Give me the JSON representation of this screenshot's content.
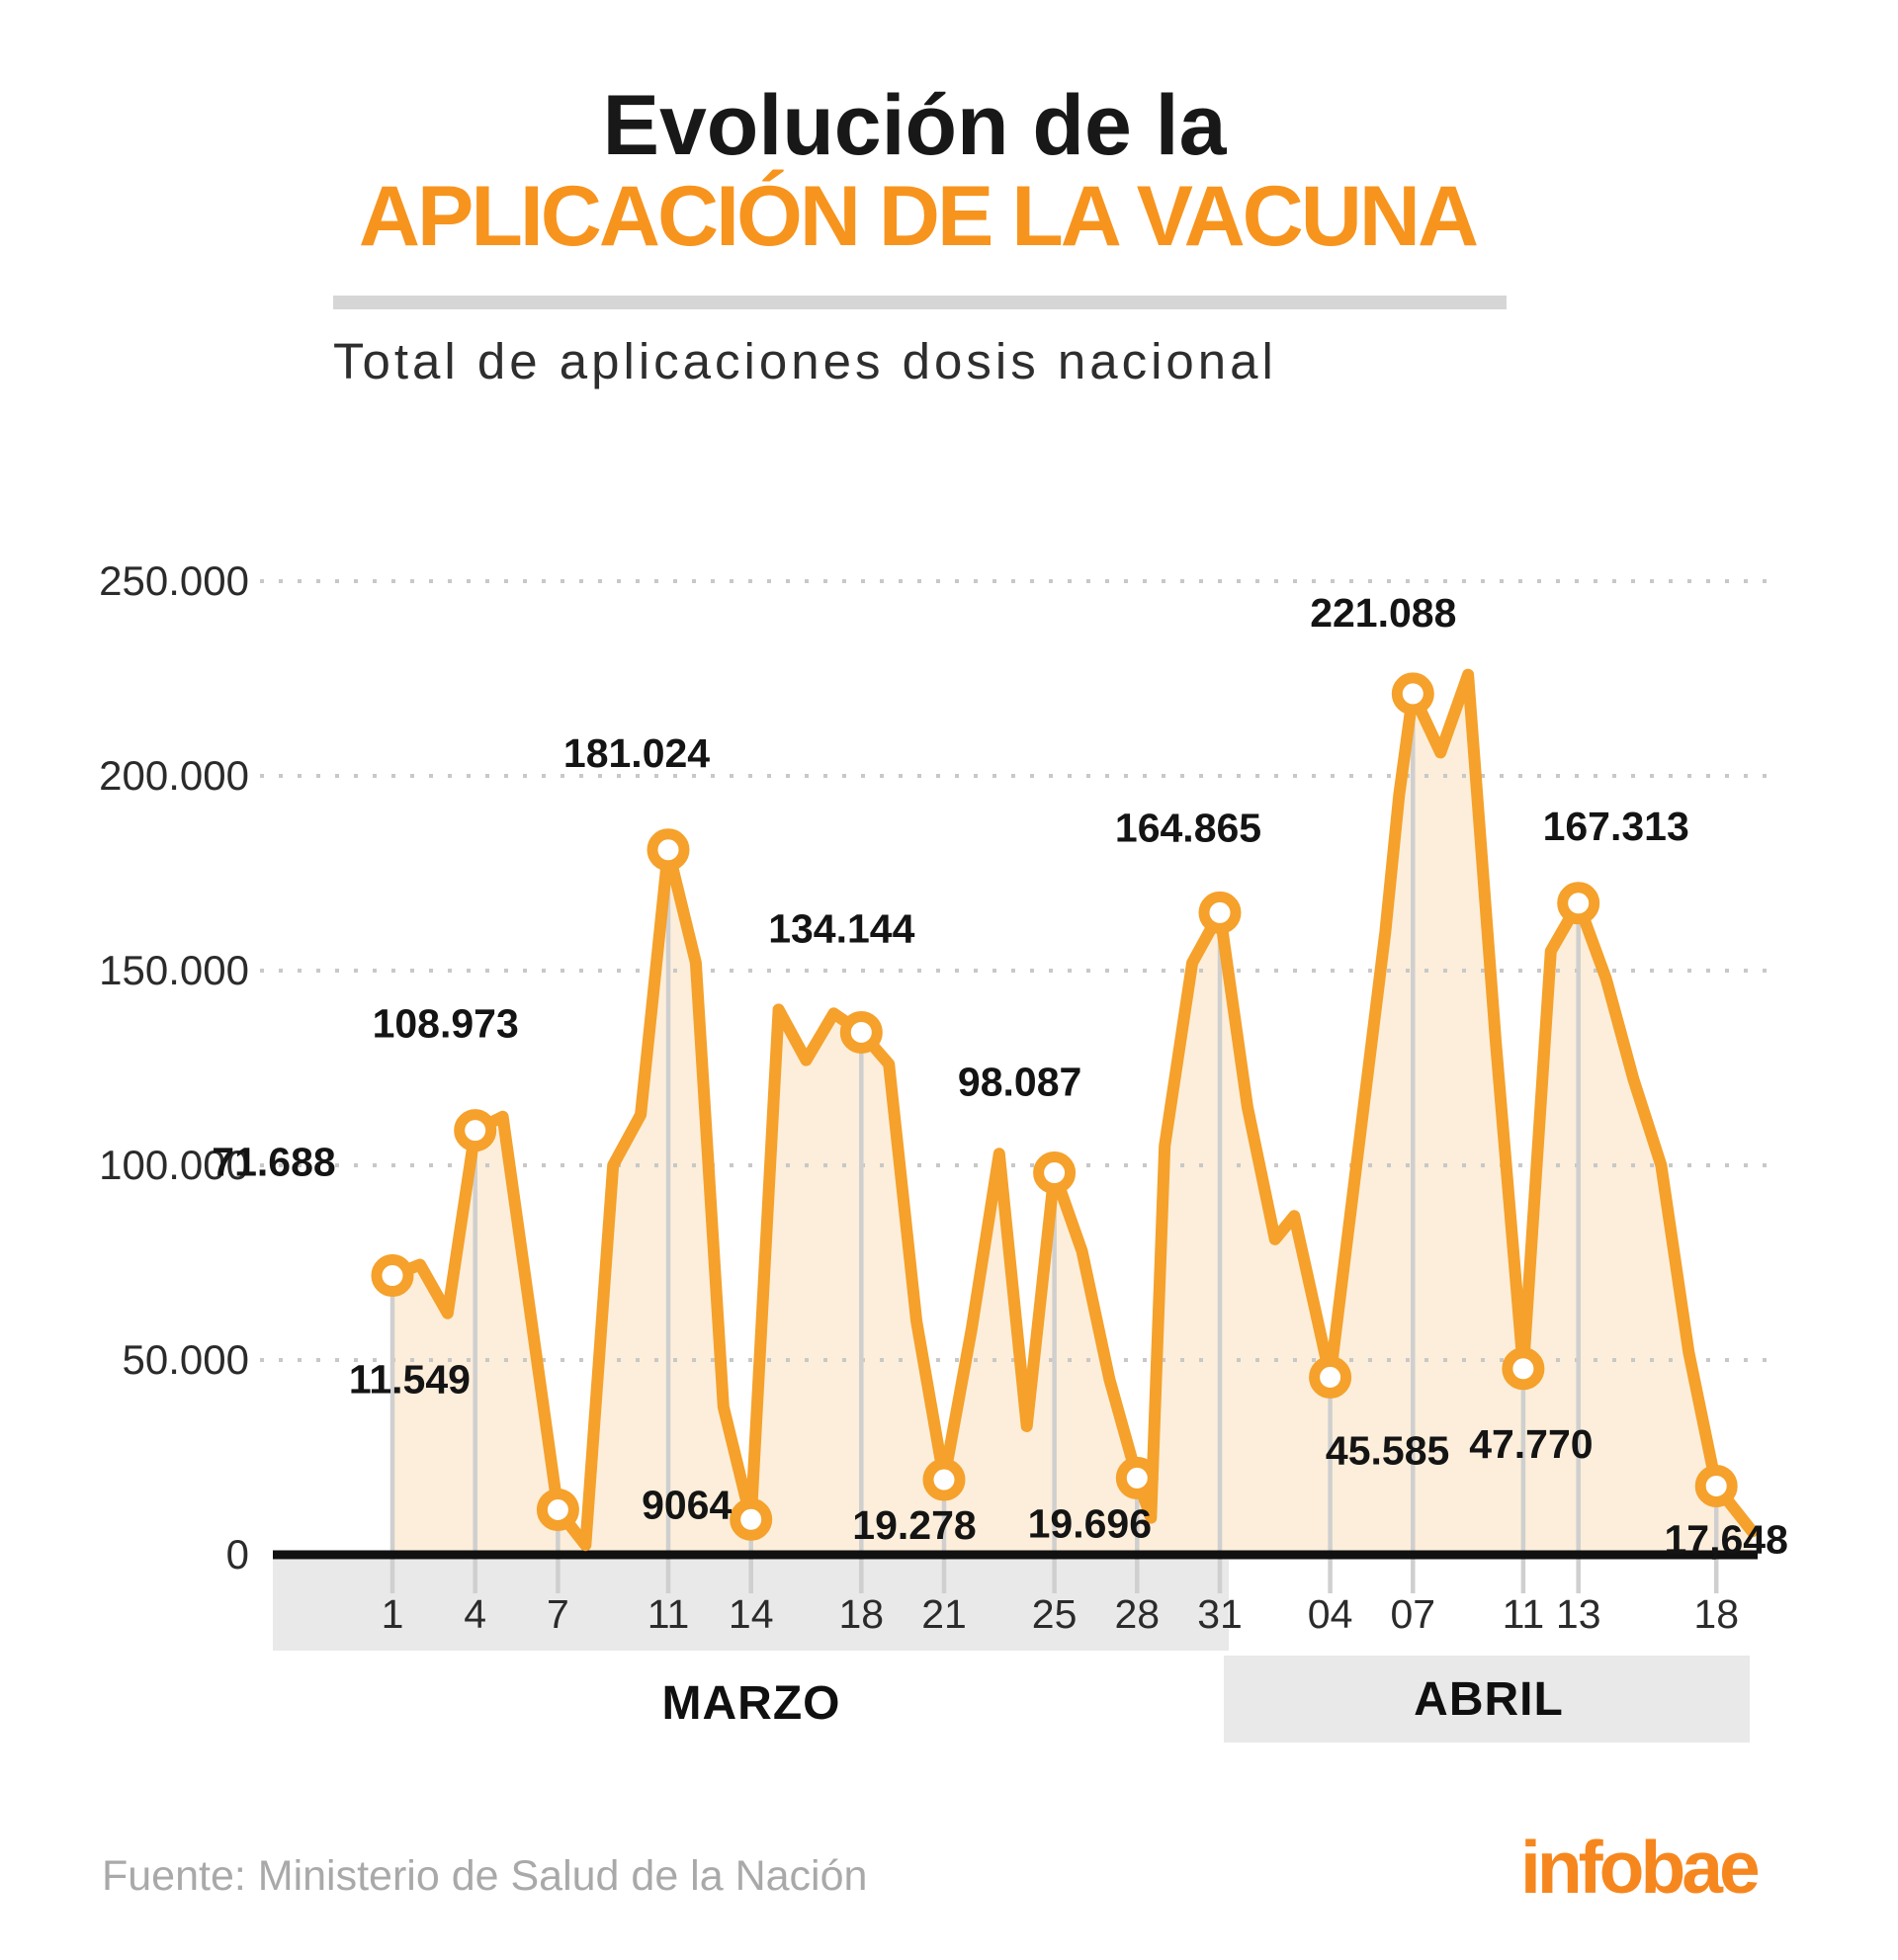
{
  "title": {
    "line1": "Evolución de la",
    "line2": "APLICACIÓN DE LA VACUNA"
  },
  "subtitle": "Total de aplicaciones dosis nacional",
  "source": "Fuente: Ministerio de Salud de la Nación",
  "logo": "infobae",
  "colors": {
    "accent_orange": "#F7941E",
    "line_orange": "#F5A12B",
    "area_fill": "#FCEEDA",
    "grid_dots": "#C8C8C8",
    "drop_line": "#CFCFCF",
    "band_gray": "#E9E9E9",
    "axis_black": "#111111",
    "label_dark": "#141414",
    "tick_text": "#2b2b2b",
    "footer_gray": "#A9A9A9"
  },
  "chart_data": {
    "type": "area",
    "title": "Evolución de la APLICACIÓN DE LA VACUNA",
    "subtitle": "Total de aplicaciones dosis nacional",
    "xlabel": "",
    "ylabel": "",
    "ylim": [
      0,
      250000
    ],
    "grid": true,
    "legend": false,
    "y_ticks": [
      "0",
      "50.000",
      "100.000",
      "150.000",
      "200.000",
      "250.000"
    ],
    "y_tick_values": [
      0,
      50000,
      100000,
      150000,
      200000,
      250000
    ],
    "x_months": [
      {
        "label": "MARZO",
        "ticks": [
          "1",
          "4",
          "7",
          "11",
          "14",
          "18",
          "21",
          "25",
          "28",
          "31"
        ]
      },
      {
        "label": "ABRIL",
        "ticks": [
          "04",
          "07",
          "11",
          "13",
          "18"
        ]
      }
    ],
    "labeled_points": [
      {
        "x": 0,
        "month": "MARZO",
        "date": "1",
        "value": 71688,
        "label": "71.688"
      },
      {
        "x": 3,
        "month": "MARZO",
        "date": "4",
        "value": 108973,
        "label": "108.973"
      },
      {
        "x": 6,
        "month": "MARZO",
        "date": "7",
        "value": 11549,
        "label": "11.549"
      },
      {
        "x": 10,
        "month": "MARZO",
        "date": "11",
        "value": 181024,
        "label": "181.024"
      },
      {
        "x": 13,
        "month": "MARZO",
        "date": "14",
        "value": 9064,
        "label": "9064"
      },
      {
        "x": 17,
        "month": "MARZO",
        "date": "18",
        "value": 134144,
        "label": "134.144"
      },
      {
        "x": 20,
        "month": "MARZO",
        "date": "21",
        "value": 19278,
        "label": "19.278"
      },
      {
        "x": 24,
        "month": "MARZO",
        "date": "25",
        "value": 98087,
        "label": "98.087"
      },
      {
        "x": 27,
        "month": "MARZO",
        "date": "28",
        "value": 19696,
        "label": "19.696"
      },
      {
        "x": 30,
        "month": "MARZO",
        "date": "31",
        "value": 164865,
        "label": "164.865"
      },
      {
        "x": 34,
        "month": "ABRIL",
        "date": "04",
        "value": 45585,
        "label": "45.585"
      },
      {
        "x": 37,
        "month": "ABRIL",
        "date": "07",
        "value": 221088,
        "label": "221.088"
      },
      {
        "x": 41,
        "month": "ABRIL",
        "date": "11",
        "value": 47770,
        "label": "47.770"
      },
      {
        "x": 43,
        "month": "ABRIL",
        "date": "13",
        "value": 167313,
        "label": "167.313"
      },
      {
        "x": 48,
        "month": "ABRIL",
        "date": "18",
        "value": 17648,
        "label": "17,648"
      }
    ],
    "series": [
      {
        "x": 0,
        "y": 71688
      },
      {
        "x": 1,
        "y": 74500
      },
      {
        "x": 2,
        "y": 62000
      },
      {
        "x": 3,
        "y": 108973
      },
      {
        "x": 4,
        "y": 112500
      },
      {
        "x": 6,
        "y": 11549
      },
      {
        "x": 7,
        "y": 2500
      },
      {
        "x": 8,
        "y": 100000
      },
      {
        "x": 9,
        "y": 113000
      },
      {
        "x": 10,
        "y": 181024
      },
      {
        "x": 11,
        "y": 152000
      },
      {
        "x": 12,
        "y": 38000
      },
      {
        "x": 13,
        "y": 9064
      },
      {
        "x": 14,
        "y": 140000
      },
      {
        "x": 15,
        "y": 127000
      },
      {
        "x": 16,
        "y": 139000
      },
      {
        "x": 17,
        "y": 134144
      },
      {
        "x": 18,
        "y": 126000
      },
      {
        "x": 19,
        "y": 60000
      },
      {
        "x": 20,
        "y": 19278
      },
      {
        "x": 21,
        "y": 58000
      },
      {
        "x": 22,
        "y": 103000
      },
      {
        "x": 23,
        "y": 33000
      },
      {
        "x": 24,
        "y": 98087
      },
      {
        "x": 25,
        "y": 78000
      },
      {
        "x": 26,
        "y": 45000
      },
      {
        "x": 27,
        "y": 19696
      },
      {
        "x": 27.5,
        "y": 9500
      },
      {
        "x": 28,
        "y": 105000
      },
      {
        "x": 29,
        "y": 152000
      },
      {
        "x": 30,
        "y": 164865
      },
      {
        "x": 31,
        "y": 115000
      },
      {
        "x": 32,
        "y": 81000
      },
      {
        "x": 32.7,
        "y": 87000
      },
      {
        "x": 34,
        "y": 45585
      },
      {
        "x": 36,
        "y": 160000
      },
      {
        "x": 36.5,
        "y": 195000
      },
      {
        "x": 37,
        "y": 221088
      },
      {
        "x": 38,
        "y": 206000
      },
      {
        "x": 39,
        "y": 226000
      },
      {
        "x": 40,
        "y": 132000
      },
      {
        "x": 41,
        "y": 47770
      },
      {
        "x": 42,
        "y": 155000
      },
      {
        "x": 43,
        "y": 167313
      },
      {
        "x": 44,
        "y": 148000
      },
      {
        "x": 45,
        "y": 122000
      },
      {
        "x": 46,
        "y": 100000
      },
      {
        "x": 47,
        "y": 52000
      },
      {
        "x": 48,
        "y": 17648
      },
      {
        "x": 49.3,
        "y": 6000
      }
    ]
  }
}
